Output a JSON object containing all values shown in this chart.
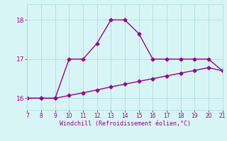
{
  "line1_x": [
    7,
    8,
    9,
    10,
    11,
    12,
    13,
    14,
    15,
    16,
    17,
    18,
    19,
    20,
    21
  ],
  "line1_y": [
    16.0,
    16.0,
    16.0,
    17.0,
    17.0,
    17.4,
    18.0,
    18.0,
    17.65,
    17.0,
    17.0,
    17.0,
    17.0,
    17.0,
    16.7
  ],
  "line2_x": [
    7,
    8,
    9,
    10,
    11,
    12,
    13,
    14,
    15,
    16,
    17,
    18,
    19,
    20,
    21
  ],
  "line2_y": [
    16.0,
    16.0,
    16.0,
    16.07,
    16.14,
    16.21,
    16.29,
    16.36,
    16.43,
    16.5,
    16.57,
    16.64,
    16.71,
    16.78,
    16.7
  ],
  "line_color": "#990099",
  "bg_color": "#d8f5f5",
  "grid_color": "#aadddd",
  "xlabel": "Windchill (Refroidissement éolien,°C)",
  "xlim": [
    7,
    21
  ],
  "ylim": [
    15.7,
    18.4
  ],
  "yticks": [
    16,
    17,
    18
  ],
  "xticks": [
    7,
    8,
    9,
    10,
    11,
    12,
    13,
    14,
    15,
    16,
    17,
    18,
    19,
    20,
    21
  ],
  "xlabel_color": "#990099",
  "tick_color": "#990099",
  "marker": "D",
  "markersize": 2.5,
  "linewidth": 1.0
}
